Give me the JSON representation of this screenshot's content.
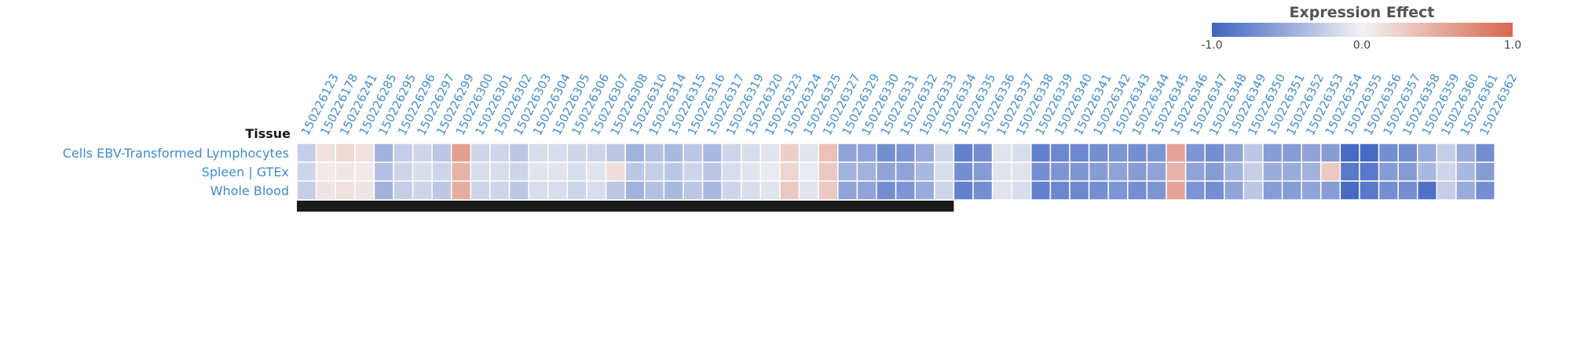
{
  "chart_data": {
    "type": "heatmap",
    "y_axis_title": "Tissue",
    "rows": [
      "Cells EBV-Transformed Lymphocytes",
      "Spleen | GTEx",
      "Whole Blood"
    ],
    "columns": [
      "150226123",
      "150226178",
      "150226241",
      "150226285",
      "150226295",
      "150226296",
      "150226297",
      "150226299",
      "150226300",
      "150226301",
      "150226302",
      "150226303",
      "150226304",
      "150226305",
      "150226306",
      "150226307",
      "150226308",
      "150226310",
      "150226314",
      "150226315",
      "150226316",
      "150226317",
      "150226319",
      "150226320",
      "150226323",
      "150226324",
      "150226325",
      "150226327",
      "150226329",
      "150226330",
      "150226331",
      "150226332",
      "150226333",
      "150226334",
      "150226335",
      "150226336",
      "150226337",
      "150226338",
      "150226339",
      "150226340",
      "150226341",
      "150226342",
      "150226343",
      "150226344",
      "150226345",
      "150226346",
      "150226347",
      "150226348",
      "150226349",
      "150226350",
      "150226351",
      "150226352",
      "150226353",
      "150226354",
      "150226355",
      "150226356",
      "150226357",
      "150226358",
      "150226359",
      "150226360",
      "150226361",
      "150226362"
    ],
    "values": [
      [
        -0.25,
        0.12,
        0.18,
        0.12,
        -0.45,
        -0.25,
        -0.2,
        -0.3,
        0.6,
        -0.2,
        -0.2,
        -0.3,
        -0.15,
        -0.15,
        -0.2,
        -0.2,
        -0.3,
        -0.45,
        -0.35,
        -0.4,
        -0.3,
        -0.4,
        -0.2,
        -0.15,
        -0.1,
        0.25,
        -0.1,
        0.35,
        -0.55,
        -0.55,
        -0.7,
        -0.65,
        -0.5,
        -0.2,
        -0.8,
        -0.7,
        -0.1,
        -0.15,
        -0.8,
        -0.75,
        -0.75,
        -0.7,
        -0.65,
        -0.7,
        -0.65,
        0.55,
        -0.65,
        -0.7,
        -0.55,
        -0.3,
        -0.6,
        -0.6,
        -0.55,
        -0.6,
        -0.95,
        -0.95,
        -0.7,
        -0.7,
        -0.5,
        -0.25,
        -0.5,
        -0.7
      ],
      [
        -0.2,
        0.06,
        0.08,
        0.06,
        -0.35,
        -0.2,
        -0.15,
        -0.2,
        0.45,
        -0.15,
        -0.15,
        -0.2,
        -0.1,
        -0.1,
        -0.15,
        -0.1,
        0.15,
        -0.3,
        -0.25,
        -0.3,
        -0.2,
        -0.3,
        -0.15,
        -0.1,
        -0.05,
        0.2,
        -0.05,
        0.3,
        -0.45,
        -0.45,
        -0.55,
        -0.55,
        -0.4,
        -0.15,
        -0.7,
        -0.6,
        -0.1,
        -0.1,
        -0.7,
        -0.65,
        -0.65,
        -0.6,
        -0.55,
        -0.6,
        -0.55,
        0.45,
        -0.55,
        -0.6,
        -0.45,
        -0.25,
        -0.5,
        -0.5,
        -0.45,
        0.3,
        -0.85,
        -0.85,
        -0.6,
        -0.6,
        -0.4,
        -0.2,
        -0.4,
        -0.6
      ],
      [
        -0.25,
        0.1,
        0.12,
        0.1,
        -0.45,
        -0.25,
        -0.2,
        -0.3,
        0.5,
        -0.2,
        -0.2,
        -0.3,
        -0.15,
        -0.15,
        -0.2,
        -0.15,
        -0.3,
        -0.45,
        -0.35,
        -0.4,
        -0.3,
        -0.4,
        -0.2,
        -0.15,
        -0.1,
        0.3,
        -0.1,
        0.3,
        -0.55,
        -0.55,
        -0.7,
        -0.65,
        -0.5,
        -0.2,
        -0.8,
        -0.7,
        -0.1,
        -0.15,
        -0.8,
        -0.75,
        -0.75,
        -0.7,
        -0.65,
        -0.7,
        -0.65,
        0.55,
        -0.65,
        -0.7,
        -0.55,
        -0.3,
        -0.6,
        -0.6,
        -0.55,
        -0.6,
        -0.95,
        -0.85,
        -0.7,
        -0.7,
        -0.9,
        -0.25,
        -0.5,
        -0.7
      ]
    ],
    "color_range": [
      -1.0,
      1.0
    ],
    "colors": {
      "negative": "#3f63c2",
      "neutral": "#f2f2f2",
      "positive": "#d9664f",
      "label": "#4a8fc8",
      "bar": "#1a1a1a"
    },
    "legend": {
      "title": "Expression Effect",
      "min_label": "-1.0",
      "mid_label": "0.0",
      "max_label": "1.0",
      "placement": "top-right"
    },
    "annotation_bar_columns": 34
  }
}
